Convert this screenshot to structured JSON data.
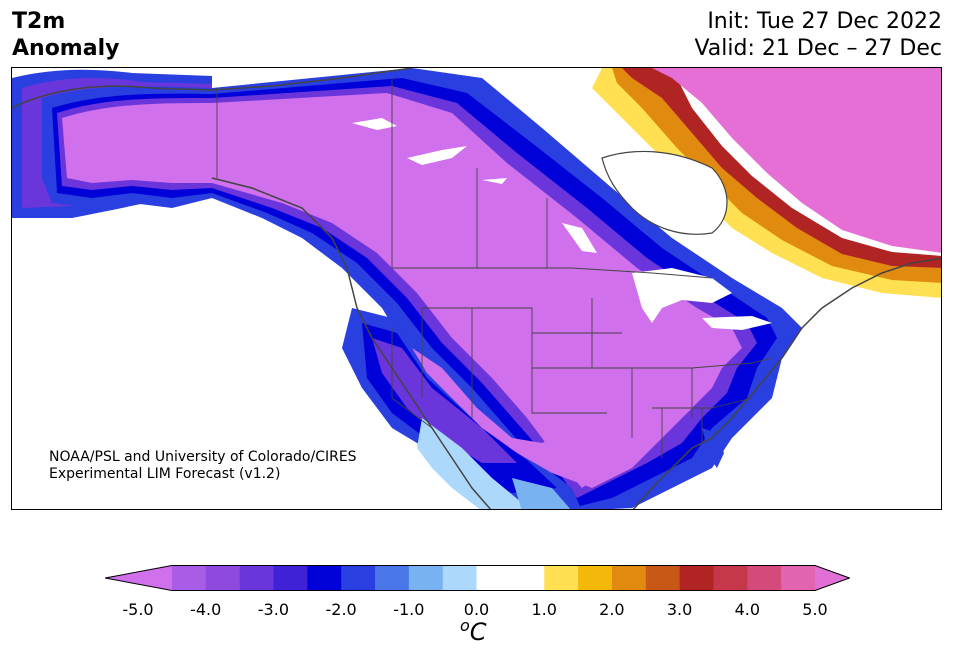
{
  "header": {
    "variable": "T2m",
    "field": "Anomaly",
    "init": "Init: Tue 27 Dec 2022",
    "valid": "Valid: 21 Dec – 27 Dec"
  },
  "credit": {
    "line1": "NOAA/PSL and University of Colorado/CIRES",
    "line2": "Experimental LIM Forecast (v1.2)"
  },
  "colorbar": {
    "unit_base": "C",
    "unit_sup": "o",
    "ticks": [
      "-5.0",
      "-4.0",
      "-3.0",
      "-2.0",
      "-1.0",
      "0.0",
      "1.0",
      "2.0",
      "3.0",
      "4.0",
      "5.0"
    ],
    "colors": [
      "#a95ce6",
      "#8e4adf",
      "#6a36db",
      "#3f21d8",
      "#0000d8",
      "#2a3fe0",
      "#4b78e8",
      "#78b2f1",
      "#acd9fb",
      "#ffffff",
      "#ffffff",
      "#ffe052",
      "#f4b80a",
      "#e08a10",
      "#c85816",
      "#b02424",
      "#c4384a",
      "#d44a7a",
      "#e064b0"
    ],
    "under_color": "#d070ec",
    "over_color": "#e26fd6"
  },
  "map": {
    "region": "North America",
    "colors": {
      "cold_extreme": "#d46ee8",
      "warm_extreme": "#e66fd6",
      "border": "#444444"
    }
  }
}
